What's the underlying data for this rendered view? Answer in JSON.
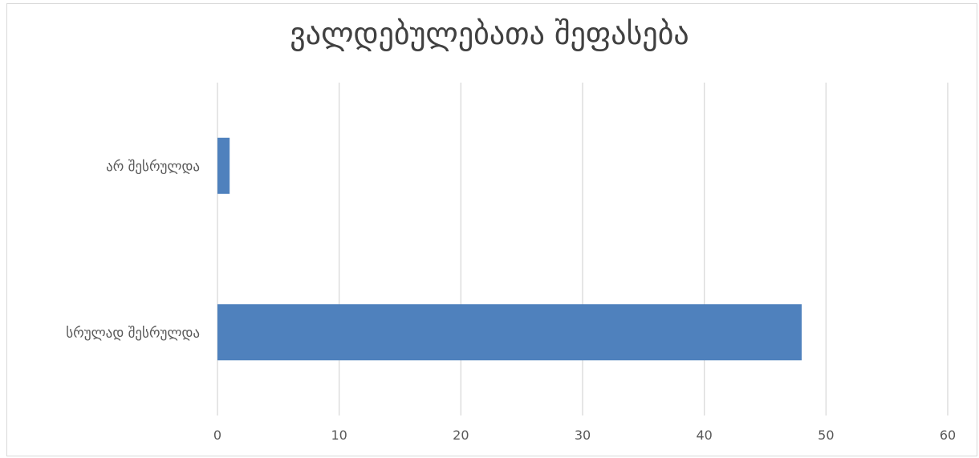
{
  "chart_data": {
    "type": "bar",
    "orientation": "horizontal",
    "title": "ვალდებულებათა შეფასება",
    "categories": [
      "არ შესრულდა",
      "სრულად შესრულდა"
    ],
    "values": [
      1,
      48
    ],
    "xlim": [
      0,
      60
    ],
    "x_ticks": [
      0,
      10,
      20,
      30,
      40,
      50,
      60
    ],
    "grid": true,
    "legend": "none",
    "bar_color": "#4f81bd",
    "grid_color": "#d9d9d9"
  }
}
